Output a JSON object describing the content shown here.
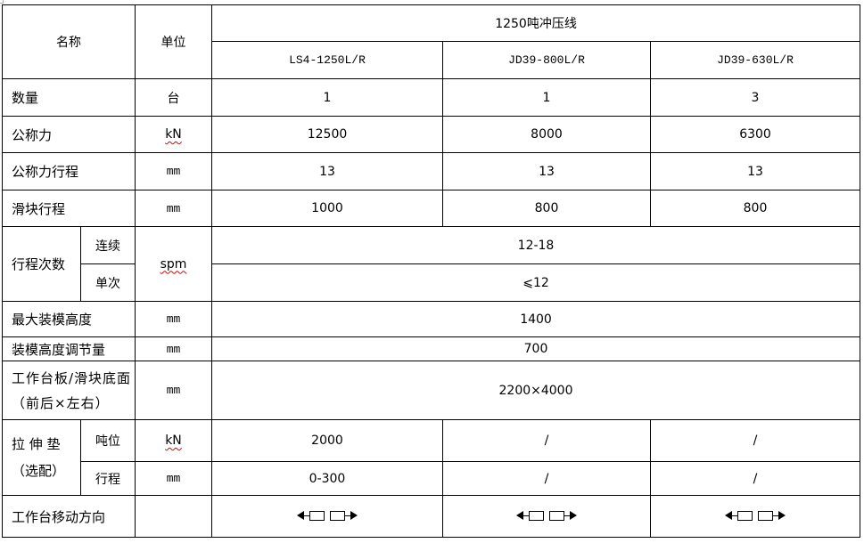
{
  "header": {
    "name": "名称",
    "unit": "单位",
    "group": "1250吨冲压线",
    "models": [
      "LS4-1250L/R",
      "JD39-800L/R",
      "JD39-630L/R"
    ]
  },
  "rows": {
    "qty": {
      "label": "数量",
      "unit": "台",
      "values": [
        "1",
        "1",
        "3"
      ]
    },
    "force": {
      "label": "公称力",
      "unit": "kN",
      "values": [
        "12500",
        "8000",
        "6300"
      ]
    },
    "force_stroke": {
      "label": "公称力行程",
      "unit": "mm",
      "values": [
        "13",
        "13",
        "13"
      ]
    },
    "slide_stroke": {
      "label": "滑块行程",
      "unit": "mm",
      "values": [
        "1000",
        "800",
        "800"
      ]
    },
    "strokes": {
      "label": "行程次数",
      "unit": "spm",
      "continuous_label": "连续",
      "continuous": "12-18",
      "single_label": "单次",
      "single": "⩽12"
    },
    "max_die": {
      "label": "最大装模高度",
      "unit": "mm",
      "value": "1400"
    },
    "die_adj": {
      "label": "装模高度调节量",
      "unit": "mm",
      "value": "700"
    },
    "bolster": {
      "label": "工作台板/滑块底面（前后×左右）",
      "unit": "mm",
      "value": "2200×4000"
    },
    "cushion": {
      "label": "拉 伸 垫（选配）",
      "tonnage_label": "吨位",
      "tonnage_unit": "kN",
      "tonnage": [
        "2000",
        "/",
        "/"
      ],
      "stroke_label": "行程",
      "stroke_unit": "mm",
      "stroke": [
        "0-300",
        "/",
        "/"
      ]
    },
    "moving": {
      "label": "工作台移动方向",
      "icon": "bidirectional-arrow-icon"
    }
  }
}
